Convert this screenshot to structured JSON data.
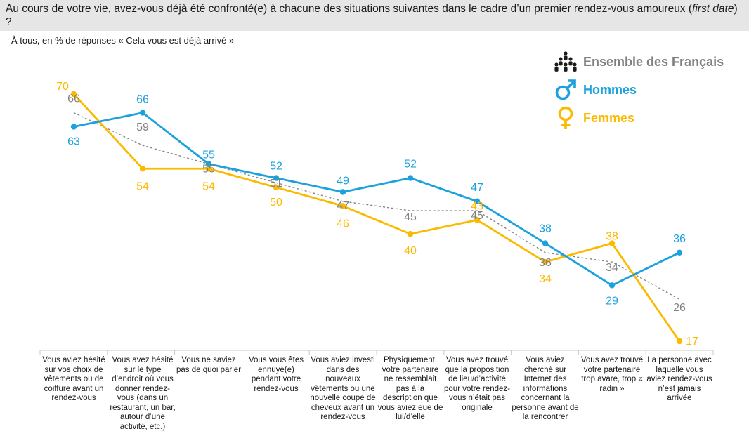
{
  "question": {
    "before": "Au cours de votre vie, avez-vous déjà été confronté(e) à chacune des situations suivantes dans le cadre d’un premier rendez-vous amoureux (",
    "italic": "first date",
    "after": ") ?"
  },
  "subtitle": "- À tous, en % de réponses « Cela vous est déjà arrivé » -",
  "legend": [
    {
      "label": "Ensemble des Français",
      "icon": "people-group-icon",
      "color": "#808080"
    },
    {
      "label": "Hommes",
      "icon": "male-symbol-icon",
      "color": "#1ba1dc"
    },
    {
      "label": "Femmes",
      "icon": "female-symbol-icon",
      "color": "#fbba00"
    }
  ],
  "chart_data": {
    "type": "line",
    "categories": [
      "Vous aviez hésité sur vos choix de vêtements ou de coiffure avant un rendez-vous",
      "Vous avez hésité sur le type d’endroit où vous donner rendez-vous (dans un restaurant, un bar, autour d’une activité, etc.)",
      "Vous ne saviez pas de quoi parler",
      "Vous vous êtes ennuyé(e) pendant votre rendez-vous",
      "Vous aviez investi dans des nouveaux vêtements ou une nouvelle coupe de cheveux avant un rendez-vous",
      "Physiquement, votre partenaire ne ressemblait pas à la description que vous aviez eue de lui/d’elle",
      "Vous avez trouvé que la proposition de lieu/d’activité pour votre rendez-vous n’était pas originale",
      "Vous aviez cherché sur Internet des informations concernant la personne avant de la rencontrer",
      "Vous avez trouvé votre partenaire trop avare, trop « radin »",
      "La personne avec laquelle vous aviez rendez-vous n’est jamais arrivée"
    ],
    "series": [
      {
        "name": "Ensemble des Français",
        "color": "#808080",
        "dashed": true,
        "markers": false,
        "values": [
          66,
          59,
          55,
          51,
          47,
          45,
          45,
          36,
          34,
          26
        ]
      },
      {
        "name": "Hommes",
        "color": "#1ba1dc",
        "dashed": false,
        "markers": true,
        "values": [
          63,
          66,
          55,
          52,
          49,
          52,
          47,
          38,
          29,
          36
        ]
      },
      {
        "name": "Femmes",
        "color": "#fbba00",
        "dashed": false,
        "markers": true,
        "values": [
          70,
          54,
          54,
          50,
          46,
          40,
          43,
          34,
          38,
          17
        ]
      }
    ],
    "ylim": [
      17,
      70
    ],
    "grid": false,
    "legend_position": "top-right"
  }
}
